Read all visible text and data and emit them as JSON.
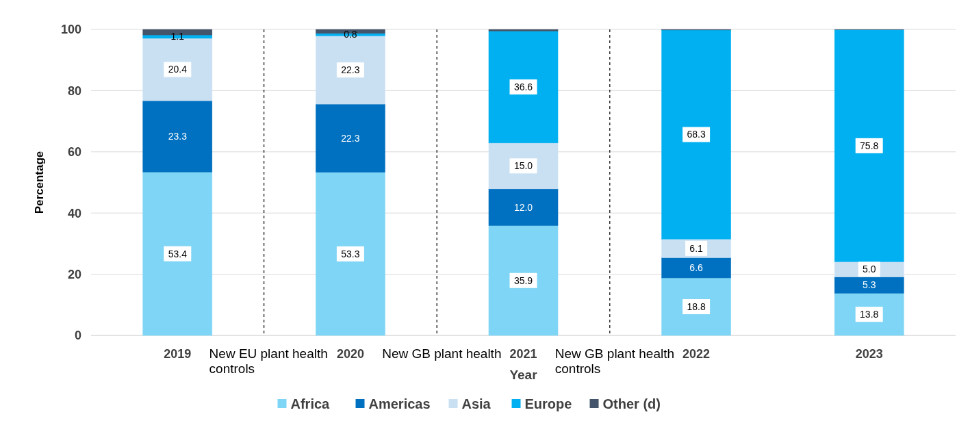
{
  "chart_data": {
    "type": "bar",
    "stacked": true,
    "xlabel": "Year",
    "ylabel": "Percentage",
    "categories": [
      "2019",
      "2020",
      "2021",
      "2022",
      "2023"
    ],
    "series": [
      {
        "name": "Africa",
        "color": "#7fd5f5",
        "values": [
          53.4,
          53.3,
          35.9,
          18.8,
          13.8
        ],
        "value_labels": [
          "53.4",
          "53.3",
          "35.9",
          "18.8",
          "13.8"
        ]
      },
      {
        "name": "Americas",
        "color": "#0070c0",
        "values": [
          23.3,
          22.3,
          12.0,
          6.6,
          5.3
        ],
        "value_labels": [
          "23.3",
          "22.3",
          "12.0",
          "6.6",
          "5.3"
        ]
      },
      {
        "name": "Asia",
        "color": "#c9e0f3",
        "values": [
          20.4,
          22.3,
          15.0,
          6.1,
          5.0
        ],
        "value_labels": [
          "20.4",
          "22.3",
          "15.0",
          "6.1",
          "5.0"
        ]
      },
      {
        "name": "Europe",
        "color": "#00b0f0",
        "values": [
          1.1,
          0.8,
          36.6,
          68.3,
          75.8
        ],
        "value_labels": [
          "1.1",
          "0.8",
          "36.6",
          "68.3",
          "75.8"
        ]
      },
      {
        "name": "Other (d)",
        "color": "#44546a",
        "values": [
          1.8,
          1.3,
          0.5,
          0.2,
          0.1
        ]
      }
    ],
    "ylim": [
      0,
      100
    ],
    "yticks": [
      0,
      20,
      40,
      60,
      80,
      100
    ],
    "grid": "y",
    "legend": "bottom",
    "annotations": [
      "New EU plant health controls",
      "New GB plant health",
      "New GB plant health controls"
    ]
  }
}
